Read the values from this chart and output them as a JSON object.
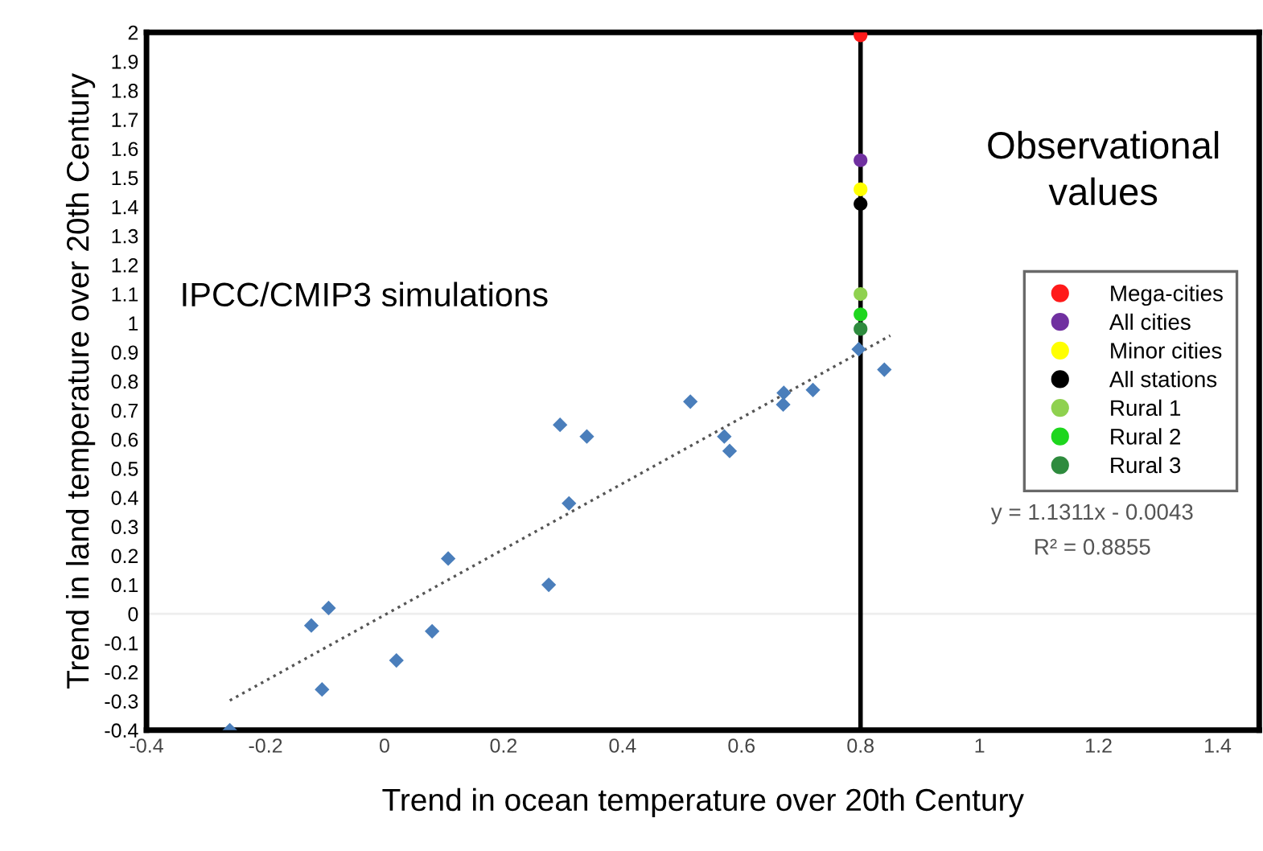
{
  "chart_data": {
    "type": "scatter",
    "xlabel": "Trend in ocean temperature over 20th Century",
    "ylabel": "Trend in land temperature over 20th Century",
    "xlim": [
      -0.4,
      1.47
    ],
    "ylim": [
      -0.4,
      2
    ],
    "xticks": [
      -0.4,
      -0.2,
      0,
      0.2,
      0.4,
      0.6,
      0.8,
      1,
      1.2,
      1.4
    ],
    "yticks": [
      -0.4,
      -0.3,
      -0.2,
      -0.1,
      0,
      0.1,
      0.2,
      0.3,
      0.4,
      0.5,
      0.6,
      0.7,
      0.8,
      0.9,
      1,
      1.1,
      1.2,
      1.3,
      1.4,
      1.5,
      1.6,
      1.7,
      1.8,
      1.9,
      2
    ],
    "grid": false,
    "legend": "right",
    "series": [
      {
        "color": "#4a7ebb",
        "marker": "diamond",
        "x": [
          -0.26,
          -0.123,
          -0.094,
          -0.105,
          0.02,
          0.08,
          0.107,
          0.276,
          0.295,
          0.31,
          0.34,
          0.514,
          0.571,
          0.58,
          0.671,
          0.67,
          0.72,
          0.797,
          0.84
        ],
        "values": [
          -0.4,
          -0.04,
          0.02,
          -0.26,
          -0.16,
          -0.06,
          0.19,
          0.1,
          0.65,
          0.38,
          0.61,
          0.73,
          0.61,
          0.56,
          0.76,
          0.72,
          0.77,
          0.91,
          0.84
        ]
      },
      {
        "type": "line",
        "color": "#555555",
        "line_style": "dotted",
        "marker": "none",
        "x": [
          -0.26,
          0.85
        ],
        "values": [
          -0.298,
          0.957
        ]
      },
      {
        "name": "Mega-cities",
        "color": "#ff1a1a",
        "marker": "circle",
        "x": [
          0.8
        ],
        "values": [
          1.99
        ]
      },
      {
        "name": "All cities",
        "color": "#7030a0",
        "marker": "circle",
        "x": [
          0.8
        ],
        "values": [
          1.56
        ]
      },
      {
        "name": "Minor cities",
        "color": "#ffff00",
        "marker": "circle",
        "x": [
          0.8
        ],
        "values": [
          1.46
        ]
      },
      {
        "name": "All stations",
        "color": "#000000",
        "marker": "circle",
        "x": [
          0.8
        ],
        "values": [
          1.41
        ]
      },
      {
        "name": "Rural 1",
        "color": "#8fd14f",
        "marker": "circle",
        "x": [
          0.8
        ],
        "values": [
          1.1
        ]
      },
      {
        "name": "Rural 2",
        "color": "#1ed61e",
        "marker": "circle",
        "x": [
          0.8
        ],
        "values": [
          1.03
        ]
      },
      {
        "name": "Rural 3",
        "color": "#2e8b3e",
        "marker": "circle",
        "x": [
          0.8
        ],
        "values": [
          0.98
        ]
      }
    ],
    "ref_lines": [
      {
        "axis": "y",
        "value": 0,
        "color": "#eeeeee"
      },
      {
        "axis": "x",
        "value": 0.8,
        "color": "#000000"
      }
    ],
    "annotations": [
      "IPCC/CMIP3 simulations",
      "Observational values",
      "y = 1.1311x - 0.0043",
      "R² = 0.8855"
    ]
  }
}
